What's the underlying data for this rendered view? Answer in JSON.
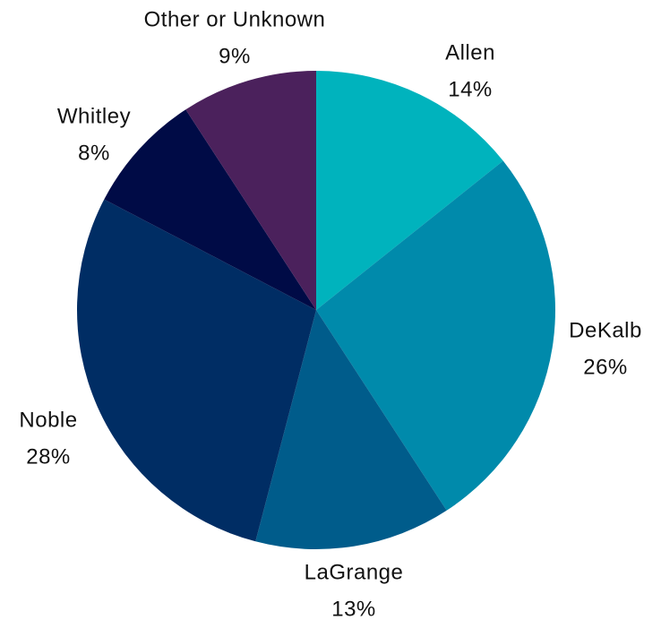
{
  "chart_data": {
    "type": "pie",
    "title": "",
    "categories": [
      "Allen",
      "DeKalb",
      "LaGrange",
      "Noble",
      "Whitley",
      "Other or Unknown"
    ],
    "values": [
      14,
      26,
      13,
      28,
      8,
      9
    ],
    "value_labels": [
      "14%",
      "26%",
      "13%",
      "28%",
      "8%",
      "9%"
    ],
    "colors": [
      "#00b3bd",
      "#008aab",
      "#005c8b",
      "#002d64",
      "#000b46",
      "#4b215c"
    ],
    "start_angle_deg": 0,
    "direction": "clockwise",
    "legend": "none",
    "data_labels": "outside"
  }
}
